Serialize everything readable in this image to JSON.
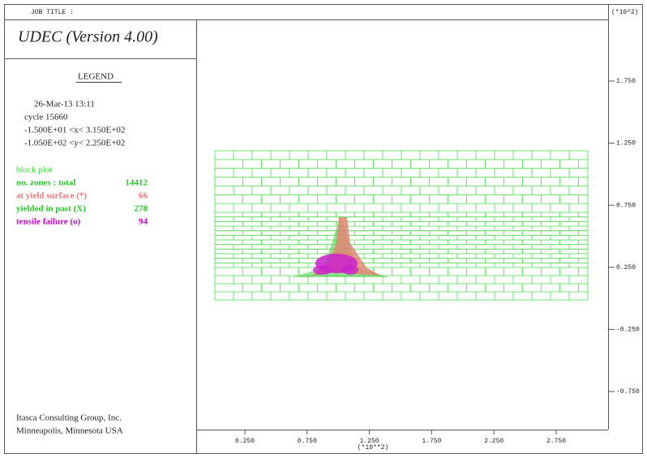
{
  "header": {
    "job_title": "JOB TITLE :",
    "scale_note": "(*10^2)"
  },
  "title": "UDEC (Version 4.00)",
  "legend": {
    "heading": "LEGEND",
    "date": "26-Mar-13   13:11",
    "cycle": "cycle  15660",
    "x_range": "-1.500E+01 <x<  3.150E+02",
    "y_range": "-1.050E+02 <y<  2.250E+02",
    "items": [
      {
        "label": "block plot"
      },
      {
        "label": "no. zones : total",
        "value": 14412
      },
      {
        "label": "at yield surface (*)",
        "value": 66
      },
      {
        "label": "yielded in past  (X)",
        "value": 278
      },
      {
        "label": "tensile failure  (o)",
        "value": 94
      }
    ]
  },
  "footer": [
    "Itasca Consulting Group, Inc.",
    "Minneapolis, Minnesota   USA"
  ],
  "axes": {
    "y_ticks": [
      "1.750",
      "1.250",
      "0.750",
      "0.250",
      "-0.250",
      "-0.750"
    ],
    "x_ticks": [
      "0.250",
      "0.750",
      "1.250",
      "1.750",
      "2.250",
      "2.750"
    ],
    "x_unit": "(*10**2)"
  }
}
